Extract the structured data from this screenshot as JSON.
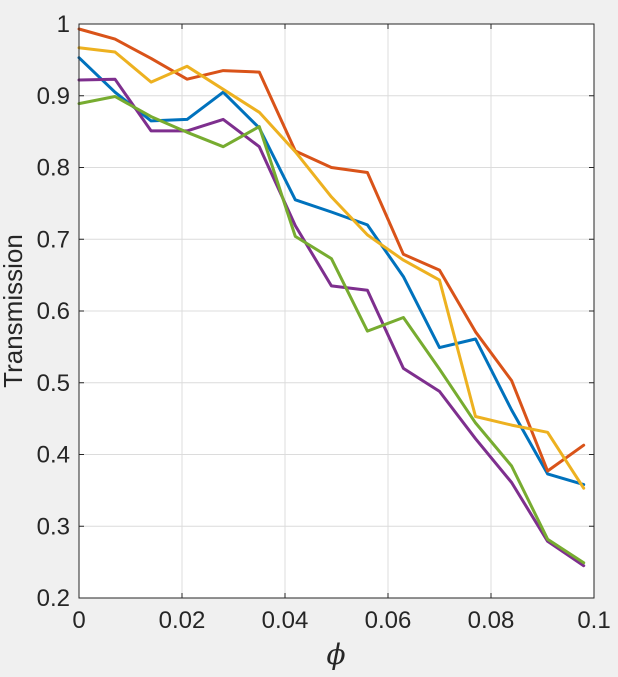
{
  "chart_data": {
    "type": "line",
    "title": "",
    "xlabel": "ϕ",
    "ylabel": "Transmission",
    "xlim": [
      0,
      0.1
    ],
    "ylim": [
      0.2,
      1
    ],
    "grid": true,
    "x_ticks": [
      0,
      0.02,
      0.04,
      0.06,
      0.08,
      0.1
    ],
    "x_tick_labels": [
      "0",
      "0.02",
      "0.04",
      "0.06",
      "0.08",
      "0.1"
    ],
    "y_ticks": [
      0.2,
      0.3,
      0.4,
      0.5,
      0.6,
      0.7,
      0.8,
      0.9,
      1
    ],
    "y_tick_labels": [
      "0.2",
      "0.3",
      "0.4",
      "0.5",
      "0.6",
      "0.7",
      "0.8",
      "0.9",
      "1"
    ],
    "x": [
      0,
      0.007,
      0.014,
      0.021,
      0.028,
      0.035,
      0.042,
      0.049,
      0.056,
      0.063,
      0.07,
      0.077,
      0.084,
      0.091,
      0.098
    ],
    "series": [
      {
        "color": "#0072BD",
        "values": [
          0.953,
          0.905,
          0.865,
          0.867,
          0.905,
          0.855,
          0.755,
          0.738,
          0.72,
          0.648,
          0.549,
          0.561,
          0.462,
          0.373,
          0.358
        ]
      },
      {
        "color": "#D95319",
        "values": [
          0.993,
          0.979,
          0.952,
          0.923,
          0.935,
          0.933,
          0.823,
          0.8,
          0.793,
          0.679,
          0.657,
          0.571,
          0.503,
          0.377,
          0.413
        ]
      },
      {
        "color": "#EDB120",
        "values": [
          0.967,
          0.961,
          0.919,
          0.941,
          0.909,
          0.877,
          0.822,
          0.759,
          0.706,
          0.671,
          0.643,
          0.453,
          0.441,
          0.431,
          0.353
        ]
      },
      {
        "color": "#7E2F8E",
        "values": [
          0.922,
          0.923,
          0.851,
          0.851,
          0.867,
          0.829,
          0.719,
          0.635,
          0.629,
          0.52,
          0.488,
          0.422,
          0.361,
          0.279,
          0.245
        ]
      },
      {
        "color": "#77AC30",
        "values": [
          0.889,
          0.899,
          0.871,
          0.849,
          0.829,
          0.857,
          0.704,
          0.673,
          0.572,
          0.591,
          0.519,
          0.444,
          0.384,
          0.282,
          0.249
        ]
      }
    ]
  }
}
